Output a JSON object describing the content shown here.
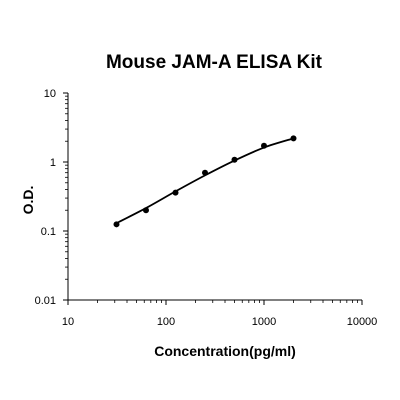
{
  "chart_data": {
    "type": "scatter",
    "title": "Mouse JAM-A ELISA Kit",
    "xlabel": "Concentration(pg/ml)",
    "ylabel": "O.D.",
    "x_scale": "log",
    "y_scale": "log",
    "xlim": [
      10,
      10000
    ],
    "ylim": [
      0.01,
      10
    ],
    "x_ticks": [
      "10",
      "100",
      "1000",
      "10000"
    ],
    "y_ticks": [
      "0.01",
      "0.1",
      "1",
      "10"
    ],
    "grid": false,
    "legend": "none",
    "series": [
      {
        "x": [
          31.25,
          62.5,
          125,
          250,
          500,
          1000,
          2000
        ],
        "y": [
          0.125,
          0.2,
          0.36,
          0.7,
          1.08,
          1.72,
          2.2
        ]
      }
    ],
    "fit_curve": {
      "x": [
        31.25,
        62.5,
        125,
        250,
        500,
        1000,
        2000
      ],
      "y": [
        0.13,
        0.215,
        0.375,
        0.64,
        1.05,
        1.62,
        2.2
      ]
    },
    "colors": {
      "marker": "#000000",
      "line": "#000000",
      "axis": "#000000"
    }
  }
}
